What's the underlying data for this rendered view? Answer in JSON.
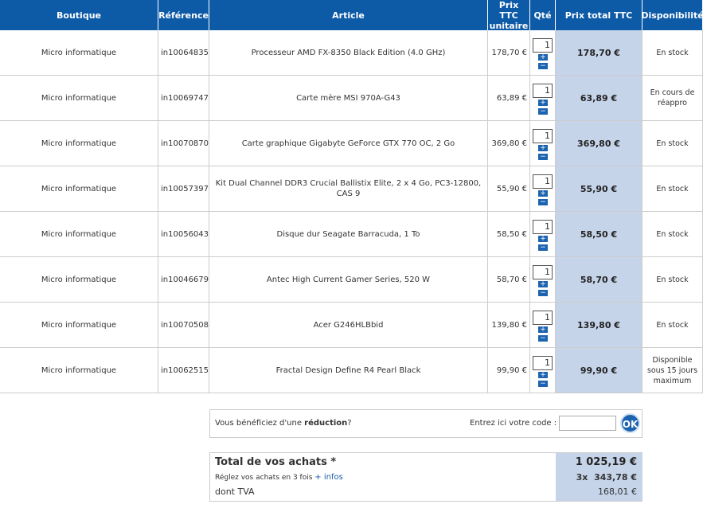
{
  "header": {
    "columns": [
      "Boutique",
      "Référence",
      "Article",
      "Prix TTC unitaire",
      "Qté",
      "Prix total TTC",
      "Disponibilité"
    ]
  },
  "table": {
    "rows": [
      [
        "Micro informatique",
        "in10064835",
        "Processeur AMD FX-8350 Black Edition (4.0 GHz)",
        "178,70 €",
        "1",
        "178,70 €",
        "En stock"
      ],
      [
        "Micro informatique",
        "in10069747",
        "Carte mère MSI 970A-G43",
        "63,89 €",
        "1",
        "63,89 €",
        "En cours de réappro"
      ],
      [
        "Micro informatique",
        "in10070870",
        "Carte graphique Gigabyte GeForce GTX 770 OC, 2 Go",
        "369,80 €",
        "1",
        "369,80 €",
        "En stock"
      ],
      [
        "Micro informatique",
        "in10057397",
        "Kit Dual Channel DDR3 Crucial Ballistix Elite, 2 x 4 Go, PC3-12800, CAS 9",
        "55,90 €",
        "1",
        "55,90 €",
        "En stock"
      ],
      [
        "Micro informatique",
        "in10056043",
        "Disque dur Seagate Barracuda, 1 To",
        "58,50 €",
        "1",
        "58,50 €",
        "En stock"
      ],
      [
        "Micro informatique",
        "in10046679",
        "Antec High Current Gamer Series, 520 W",
        "58,70 €",
        "1",
        "58,70 €",
        "En stock"
      ],
      [
        "Micro informatique",
        "in10070508",
        "Acer G246HLBbid",
        "139,80 €",
        "1",
        "139,80 €",
        "En stock"
      ],
      [
        "Micro informatique",
        "in10062515",
        "Fractal Design Define R4 Pearl Black",
        "99,90 €",
        "1",
        "99,90 €",
        "Disponible sous 15 jours maximum"
      ]
    ]
  },
  "discount": {
    "prefix": "Vous bénéficiez d'une ",
    "bold": "réduction",
    "suffix": "?",
    "code_label": "Entrez ici votre code :",
    "button": "OK"
  },
  "summary": {
    "title": "Total de vos achats *",
    "total": "1 025,19 €",
    "installment_text": "Réglez vos achats en 3 fois",
    "installment_link": "+ infos",
    "installment_count": "3x",
    "installment_amount": "343,78 €",
    "vat_label": "dont TVA",
    "vat": "168,01 €"
  }
}
